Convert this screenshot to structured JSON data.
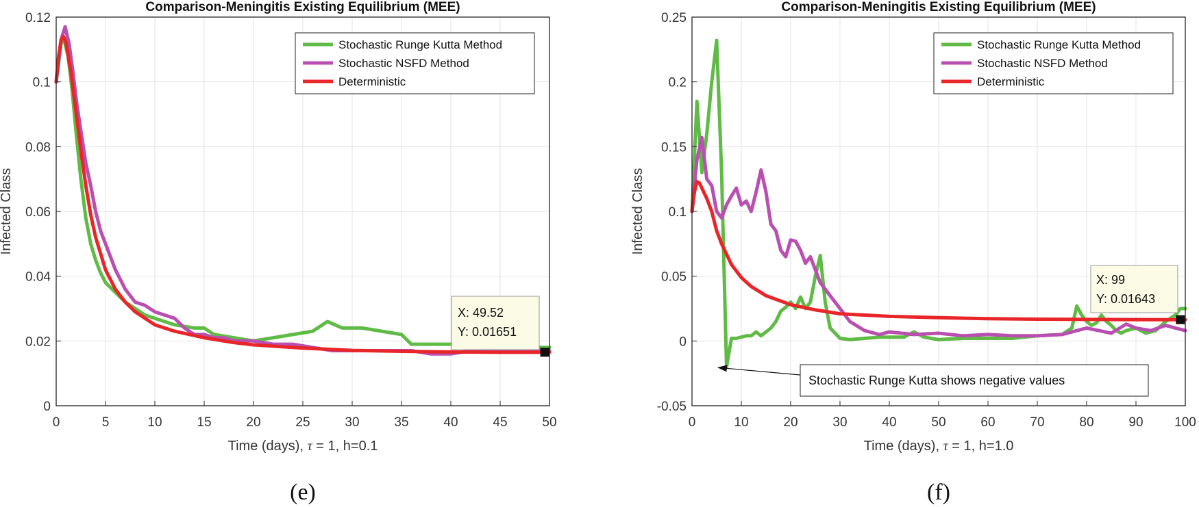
{
  "colors": {
    "green": "#5fbb46",
    "magenta": "#b94fb0",
    "red": "#e8262a",
    "grid": "#e3e3e3",
    "tooltip_bg": "#fbfbe6"
  },
  "chart_data": [
    {
      "type": "line",
      "panel_label": "(e)",
      "title": "Comparison-Meningitis Existing Equilibrium (MEE)",
      "xlabel": {
        "prefix": "Time (days), ",
        "tau": "τ",
        "suffix": " = 1, h=0.1"
      },
      "ylabel": "Infected Class",
      "xlim": [
        0,
        50
      ],
      "ylim": [
        0,
        0.12
      ],
      "xticks": [
        "0",
        "5",
        "10",
        "15",
        "20",
        "25",
        "30",
        "35",
        "40",
        "45",
        "50"
      ],
      "yticks": [
        "0",
        "0.02",
        "0.04",
        "0.06",
        "0.08",
        "0.1",
        "0.12"
      ],
      "legend": [
        "Stochastic Runge Kutta Method",
        "Stochastic NSFD Method",
        "Deterministic"
      ],
      "legend_position": "top-right",
      "series": [
        {
          "name": "Stochastic Runge Kutta Method",
          "color": "green",
          "x": [
            0,
            0.5,
            0.8,
            1.2,
            1.6,
            2,
            2.5,
            3,
            3.5,
            4,
            4.5,
            5,
            6,
            7,
            8,
            9,
            10,
            12,
            14,
            15,
            16,
            18,
            20,
            22,
            24,
            26,
            27.5,
            29,
            31,
            33,
            35,
            36,
            37,
            40,
            42,
            44,
            46,
            48,
            50
          ],
          "y": [
            0.1,
            0.112,
            0.113,
            0.108,
            0.098,
            0.085,
            0.07,
            0.058,
            0.05,
            0.045,
            0.041,
            0.038,
            0.035,
            0.032,
            0.03,
            0.028,
            0.027,
            0.025,
            0.024,
            0.024,
            0.022,
            0.021,
            0.02,
            0.021,
            0.022,
            0.023,
            0.026,
            0.024,
            0.024,
            0.023,
            0.022,
            0.019,
            0.019,
            0.019,
            0.019,
            0.018,
            0.018,
            0.018,
            0.018
          ]
        },
        {
          "name": "Stochastic NSFD Method",
          "color": "magenta",
          "x": [
            0,
            0.5,
            0.9,
            1.3,
            1.7,
            2.1,
            2.6,
            3,
            3.5,
            4,
            4.5,
            5,
            5.5,
            6,
            7,
            8,
            9,
            10,
            11,
            12,
            13,
            14,
            15,
            16,
            17,
            18,
            20,
            22,
            24,
            26,
            28,
            30,
            32,
            34,
            36,
            38,
            40,
            42,
            44,
            46,
            48,
            50
          ],
          "y": [
            0.1,
            0.113,
            0.117,
            0.112,
            0.103,
            0.093,
            0.083,
            0.075,
            0.068,
            0.06,
            0.054,
            0.05,
            0.046,
            0.042,
            0.036,
            0.032,
            0.031,
            0.029,
            0.028,
            0.027,
            0.024,
            0.022,
            0.022,
            0.021,
            0.021,
            0.02,
            0.02,
            0.019,
            0.019,
            0.018,
            0.017,
            0.017,
            0.017,
            0.017,
            0.017,
            0.016,
            0.016,
            0.017,
            0.017,
            0.017,
            0.017,
            0.017
          ]
        },
        {
          "name": "Deterministic",
          "color": "red",
          "x": [
            0,
            0.25,
            0.5,
            0.75,
            1,
            1.5,
            2,
            2.5,
            3,
            3.5,
            4,
            5,
            6,
            7,
            8,
            10,
            12,
            15,
            18,
            20,
            25,
            30,
            35,
            40,
            45,
            50
          ],
          "y": [
            0.1,
            0.108,
            0.113,
            0.114,
            0.112,
            0.103,
            0.091,
            0.079,
            0.068,
            0.059,
            0.052,
            0.042,
            0.036,
            0.032,
            0.029,
            0.025,
            0.023,
            0.021,
            0.0195,
            0.0188,
            0.0178,
            0.0171,
            0.0168,
            0.0166,
            0.0165,
            0.0165
          ]
        }
      ],
      "datatip": {
        "x_label": "X: 49.52",
        "y_label": "Y: 0.01651",
        "x": 49.52,
        "y": 0.01651
      }
    },
    {
      "type": "line",
      "panel_label": "(f)",
      "title": "Comparison-Meningitis Existing Equilibrium (MEE)",
      "xlabel": {
        "prefix": "Time (days), ",
        "tau": "τ",
        "suffix": " = 1, h=1.0"
      },
      "ylabel": "Infected Class",
      "xlim": [
        0,
        100
      ],
      "ylim": [
        -0.05,
        0.25
      ],
      "xticks": [
        "0",
        "10",
        "20",
        "30",
        "40",
        "50",
        "60",
        "70",
        "80",
        "90",
        "100"
      ],
      "yticks": [
        "-0.05",
        "0",
        "0.05",
        "0.1",
        "0.15",
        "0.2",
        "0.25"
      ],
      "legend": [
        "Stochastic Runge Kutta Method",
        "Stochastic NSFD Method",
        "Deterministic"
      ],
      "legend_position": "top-right",
      "series": [
        {
          "name": "Stochastic Runge Kutta Method",
          "color": "green",
          "x": [
            0,
            1,
            2,
            3,
            4,
            5,
            6,
            7,
            8,
            9,
            10,
            11,
            12,
            13,
            14,
            15,
            16,
            17,
            18,
            19,
            20,
            21,
            22,
            23,
            24,
            25,
            26,
            27,
            28,
            29,
            30,
            32,
            35,
            38,
            40,
            43,
            45,
            47,
            50,
            55,
            60,
            65,
            70,
            75,
            77,
            78,
            79,
            80,
            81,
            82,
            83,
            84,
            85,
            86,
            87,
            88,
            90,
            92,
            94,
            96,
            98,
            99,
            100
          ],
          "y": [
            0.1,
            0.185,
            0.13,
            0.16,
            0.2,
            0.232,
            0.13,
            -0.02,
            0.002,
            0.002,
            0.003,
            0.004,
            0.004,
            0.007,
            0.004,
            0.007,
            0.01,
            0.015,
            0.023,
            0.026,
            0.03,
            0.025,
            0.034,
            0.025,
            0.03,
            0.05,
            0.066,
            0.03,
            0.01,
            0.006,
            0.002,
            0.001,
            0.002,
            0.003,
            0.003,
            0.003,
            0.007,
            0.003,
            0.001,
            0.002,
            0.002,
            0.002,
            0.004,
            0.005,
            0.01,
            0.027,
            0.02,
            0.015,
            0.012,
            0.014,
            0.02,
            0.015,
            0.012,
            0.008,
            0.006,
            0.008,
            0.01,
            0.006,
            0.008,
            0.015,
            0.02,
            0.025,
            0.025
          ]
        },
        {
          "name": "Stochastic NSFD Method",
          "color": "magenta",
          "x": [
            0,
            1,
            2,
            3,
            4,
            5,
            6,
            7,
            8,
            9,
            10,
            11,
            12,
            13,
            14,
            15,
            16,
            17,
            18,
            19,
            20,
            21,
            22,
            23,
            24,
            25,
            26,
            27,
            28,
            30,
            32,
            35,
            38,
            40,
            45,
            50,
            55,
            60,
            65,
            70,
            75,
            80,
            85,
            88,
            90,
            93,
            96,
            98,
            100
          ],
          "y": [
            0.1,
            0.14,
            0.157,
            0.125,
            0.12,
            0.1,
            0.095,
            0.105,
            0.112,
            0.118,
            0.105,
            0.108,
            0.1,
            0.115,
            0.132,
            0.115,
            0.09,
            0.085,
            0.07,
            0.065,
            0.078,
            0.077,
            0.07,
            0.06,
            0.065,
            0.055,
            0.045,
            0.04,
            0.035,
            0.025,
            0.015,
            0.008,
            0.005,
            0.007,
            0.005,
            0.006,
            0.004,
            0.005,
            0.004,
            0.004,
            0.005,
            0.01,
            0.006,
            0.013,
            0.01,
            0.008,
            0.012,
            0.01,
            0.008
          ]
        },
        {
          "name": "Deterministic",
          "color": "red",
          "x": [
            0,
            0.5,
            1,
            1.5,
            2,
            3,
            4,
            5,
            6,
            8,
            10,
            12,
            15,
            20,
            25,
            30,
            40,
            50,
            60,
            70,
            80,
            90,
            99,
            100
          ],
          "y": [
            0.1,
            0.115,
            0.123,
            0.122,
            0.118,
            0.11,
            0.1,
            0.085,
            0.075,
            0.059,
            0.049,
            0.042,
            0.035,
            0.028,
            0.024,
            0.021,
            0.019,
            0.018,
            0.0172,
            0.0168,
            0.0166,
            0.0165,
            0.01643,
            0.0164
          ]
        }
      ],
      "datatip": {
        "x_label": "X: 99",
        "y_label": "Y: 0.01643",
        "x": 99,
        "y": 0.01643
      },
      "annotation": {
        "text": "Stochastic Runge Kutta shows negative values",
        "x": 5,
        "y": -0.02
      }
    }
  ]
}
